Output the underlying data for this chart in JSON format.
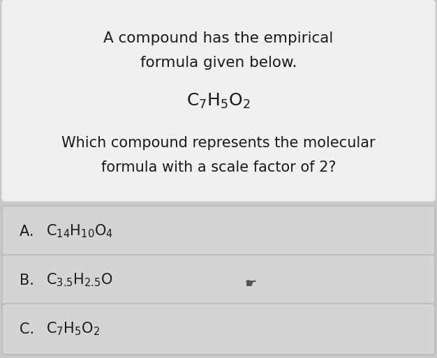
{
  "bg_color": "#c8c8c8",
  "question_box_color": "#f0f0f0",
  "answer_box_color": "#d4d4d4",
  "answer_box_border": "#b8b8b8",
  "text_color": "#1a1a1a",
  "title_line1": "A compound has the empirical",
  "title_line2": "formula given below.",
  "question_line1": "Which compound represents the molecular",
  "question_line2": "formula with a scale factor of 2?",
  "figsize": [
    6.26,
    5.13
  ],
  "dpi": 100,
  "answer_labels": [
    "A. ",
    "B. ",
    "C. "
  ]
}
